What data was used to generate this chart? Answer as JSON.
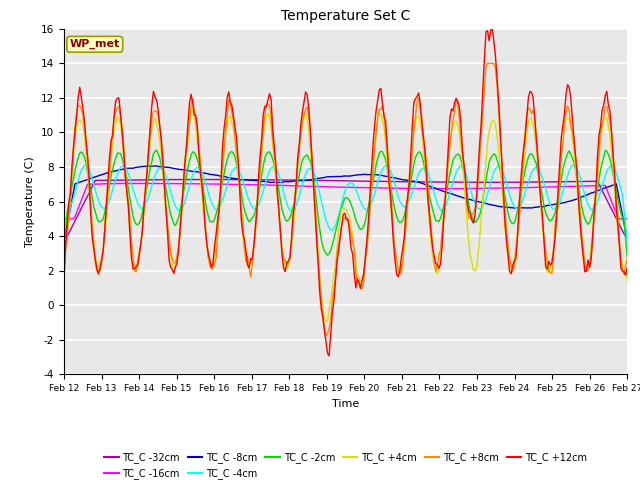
{
  "title": "Temperature Set C",
  "xlabel": "Time",
  "ylabel": "Temperature (C)",
  "ylim": [
    -4,
    16
  ],
  "x_tick_labels": [
    "Feb 12",
    "Feb 13",
    "Feb 14",
    "Feb 15",
    "Feb 16",
    "Feb 17",
    "Feb 18",
    "Feb 19",
    "Feb 20",
    "Feb 21",
    "Feb 22",
    "Feb 23",
    "Feb 24",
    "Feb 25",
    "Feb 26",
    "Feb 27"
  ],
  "annotation_text": "WP_met",
  "annotation_color": "#8B0000",
  "annotation_bg": "#FFFFC0",
  "annotation_edge": "#999900",
  "plot_bg": "#E8E8E8",
  "series_order": [
    "TC_C -32cm",
    "TC_C -16cm",
    "TC_C -8cm",
    "TC_C -4cm",
    "TC_C -2cm",
    "TC_C +4cm",
    "TC_C +8cm",
    "TC_C +12cm"
  ],
  "series_colors": {
    "TC_C -32cm": "#AA00AA",
    "TC_C -16cm": "#FF00FF",
    "TC_C -8cm": "#0000CC",
    "TC_C -4cm": "#00FFFF",
    "TC_C -2cm": "#00DD00",
    "TC_C +4cm": "#DDDD00",
    "TC_C +8cm": "#FF8800",
    "TC_C +12cm": "#FF0000"
  }
}
